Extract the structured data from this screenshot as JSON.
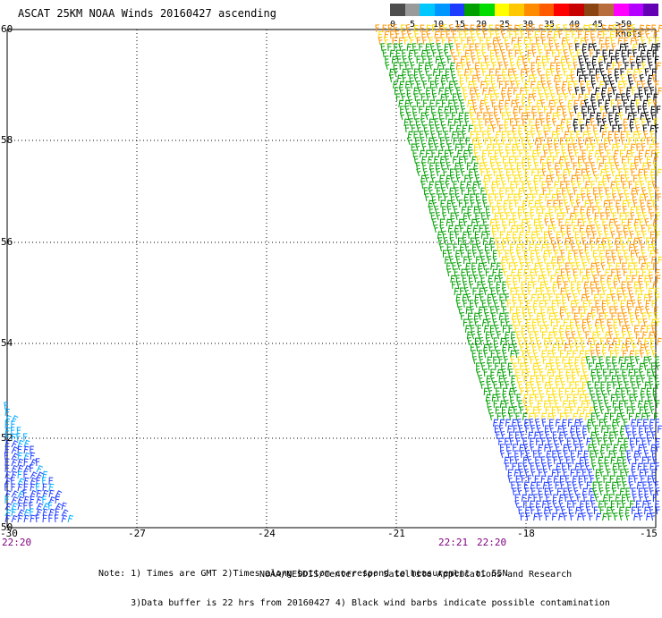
{
  "title": "ASCAT 25KM NOAA Winds 20160427 ascending",
  "legend": {
    "colors": [
      "#4d4d4d",
      "#9a9a9a",
      "#00c8ff",
      "#0096ff",
      "#1e3cff",
      "#00a000",
      "#00dc00",
      "#ffff00",
      "#ffc800",
      "#ff8c00",
      "#ff5a00",
      "#ff0000",
      "#c80000",
      "#8b4513",
      "#b86e3c",
      "#ff00ff",
      "#b400ff",
      "#6400b4"
    ],
    "labels": [
      "0",
      "5",
      "10",
      "15",
      "20",
      "25",
      "30",
      "35",
      "40",
      "45",
      ">50 knots"
    ]
  },
  "axes": {
    "lat_labels": [
      "60",
      "58",
      "56",
      "54",
      "52",
      "50"
    ],
    "lon_labels": [
      "-30",
      "-27",
      "-24",
      "-21",
      "-18",
      "-15"
    ]
  },
  "times": [
    "22:20",
    "22:21",
    "22:20"
  ],
  "note_lines": [
    "Note: 1) Times are GMT 2)Times along bottom correspond to measurement at 55N",
    "      3)Data buffer is 22 hrs from 20160427 4) Black wind barbs indicate possible contamination"
  ],
  "credit": "NOAA/NESDIS/Center for Satellite Applications and Research",
  "swath_colors": {
    "blue": "#1e3cff",
    "cyan": "#00aaff",
    "green": "#00a000",
    "yellow": "#ffdc00",
    "orange": "#ff9600",
    "black": "#000000"
  }
}
